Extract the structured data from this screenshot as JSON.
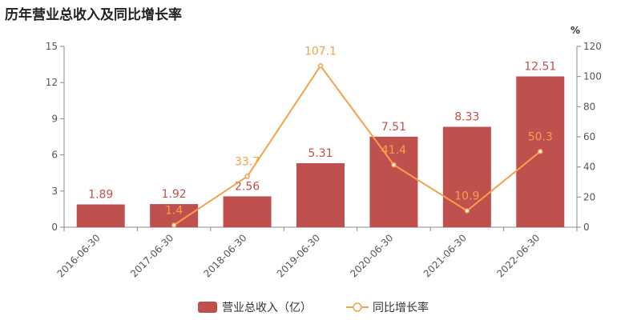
{
  "title": "历年营业总收入及同比增长率",
  "chart_data": {
    "type": "bar",
    "categories": [
      "2016-06-30",
      "2017-06-30",
      "2018-06-30",
      "2019-06-30",
      "2020-06-30",
      "2021-06-30",
      "2022-06-30"
    ],
    "series": [
      {
        "name": "营业总收入（亿）",
        "type": "bar",
        "axis": "left",
        "color": "#c0504d",
        "values": [
          1.89,
          1.92,
          2.56,
          5.31,
          7.51,
          8.33,
          12.51
        ],
        "labels": [
          "1.89",
          "1.92",
          "2.56",
          "5.31",
          "7.51",
          "8.33",
          "12.51"
        ]
      },
      {
        "name": "同比增长率",
        "type": "line",
        "axis": "right",
        "color": "#f4a14a",
        "values": [
          null,
          1.4,
          33.7,
          107.1,
          41.4,
          10.9,
          50.3
        ],
        "labels": [
          "",
          "1.4",
          "33.7",
          "107.1",
          "41.4",
          "10.9",
          "50.3"
        ]
      }
    ],
    "y_left": {
      "range": [
        0,
        15
      ],
      "ticks": [
        0,
        3,
        6,
        9,
        12,
        15
      ],
      "tick_labels": [
        "0",
        "3",
        "6",
        "9",
        "12",
        "15"
      ]
    },
    "y_right": {
      "unit": "%",
      "range": [
        0,
        120
      ],
      "ticks": [
        0,
        20,
        40,
        60,
        80,
        100,
        120
      ],
      "tick_labels": [
        "0",
        "20",
        "40",
        "60",
        "80",
        "100",
        "120"
      ]
    },
    "grid": false,
    "legend_position": "bottom-center"
  }
}
